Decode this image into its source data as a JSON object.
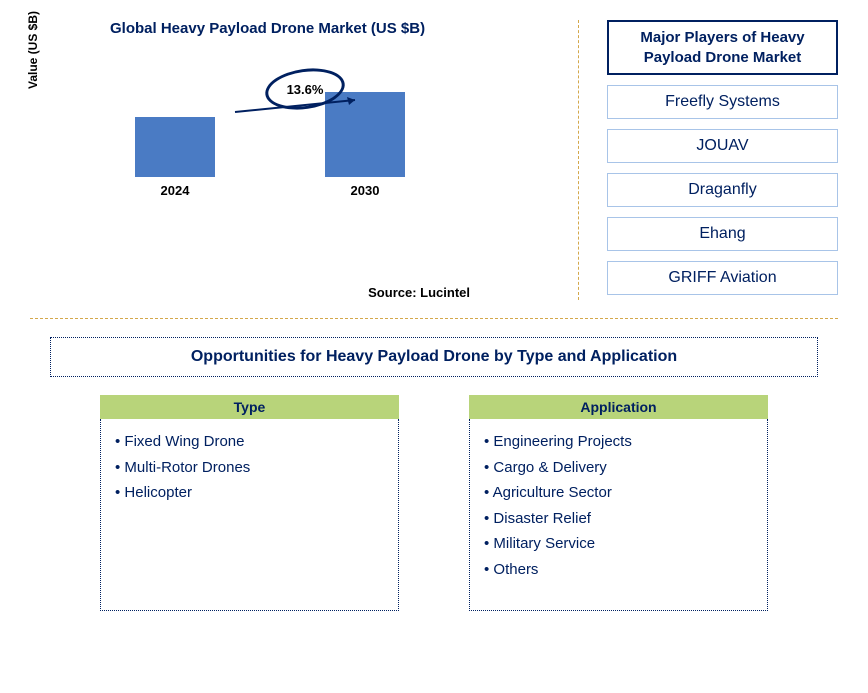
{
  "chart": {
    "title": "Global Heavy Payload Drone Market (US $B)",
    "y_label": "Value (US $B)",
    "type": "bar",
    "bars": [
      {
        "label": "2024",
        "height": 60
      },
      {
        "label": "2030",
        "height": 85
      }
    ],
    "bar_color": "#4a7bc4",
    "growth_rate": "13.6%",
    "source": "Source: Lucintel",
    "circle_border": "#002060",
    "arrow_color": "#002060"
  },
  "players": {
    "title": "Major Players of Heavy Payload Drone Market",
    "items": [
      "Freefly Systems",
      "JOUAV",
      "Draganfly",
      "Ehang",
      "GRIFF Aviation"
    ],
    "title_border": "#002060",
    "item_border": "#a8c4e8"
  },
  "opportunities": {
    "title": "Opportunities for Heavy Payload Drone by Type and Application",
    "columns": [
      {
        "header": "Type",
        "items": [
          "Fixed Wing Drone",
          "Multi-Rotor Drones",
          "Helicopter"
        ]
      },
      {
        "header": "Application",
        "items": [
          "Engineering Projects",
          "Cargo & Delivery",
          "Agriculture Sector",
          "Disaster Relief",
          "Military Service",
          "Others"
        ]
      }
    ],
    "header_bg": "#b8d47a"
  },
  "colors": {
    "primary_text": "#002060",
    "divider": "#d4a84b",
    "background": "#ffffff"
  }
}
